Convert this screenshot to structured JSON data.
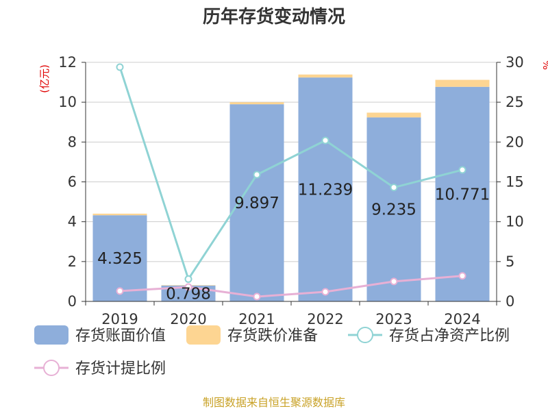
{
  "chart_data": {
    "type": "bar",
    "title": "历年存货变动情况",
    "categories": [
      "2019",
      "2020",
      "2021",
      "2022",
      "2023",
      "2024"
    ],
    "left_axis": {
      "unit_label": "(亿元)",
      "range": [
        0,
        12
      ],
      "ticks": [
        "0",
        "2",
        "4",
        "6",
        "8",
        "10",
        "12"
      ]
    },
    "right_axis": {
      "unit_label": "%",
      "range": [
        0,
        30
      ],
      "ticks": [
        "0",
        "5",
        "10",
        "15",
        "20",
        "25",
        "30"
      ]
    },
    "grid": true,
    "legend_position": "bottom",
    "series": [
      {
        "name": "存货账面价值",
        "type": "bar",
        "stack": "inv",
        "axis": "left",
        "color": "#8eaedb",
        "values": [
          4.325,
          0.798,
          9.897,
          11.239,
          9.235,
          10.771
        ],
        "labels": [
          "4.325",
          "0.798",
          "9.897",
          "11.239",
          "9.235",
          "10.771"
        ]
      },
      {
        "name": "存货跌价准备",
        "type": "bar",
        "stack": "inv",
        "axis": "left",
        "color": "#fdd592",
        "values": [
          0.08,
          0.02,
          0.1,
          0.15,
          0.24,
          0.35
        ]
      },
      {
        "name": "存货占净资产比例",
        "type": "line",
        "axis": "right",
        "color": "#8fd3d4",
        "values": [
          29.4,
          2.8,
          15.9,
          20.2,
          14.3,
          16.5
        ]
      },
      {
        "name": "存货计提比例",
        "type": "line",
        "axis": "right",
        "color": "#e7b0d5",
        "values": [
          1.3,
          1.8,
          0.6,
          1.2,
          2.5,
          3.2
        ]
      }
    ],
    "source": "制图数据来自恒生聚源数据库"
  }
}
